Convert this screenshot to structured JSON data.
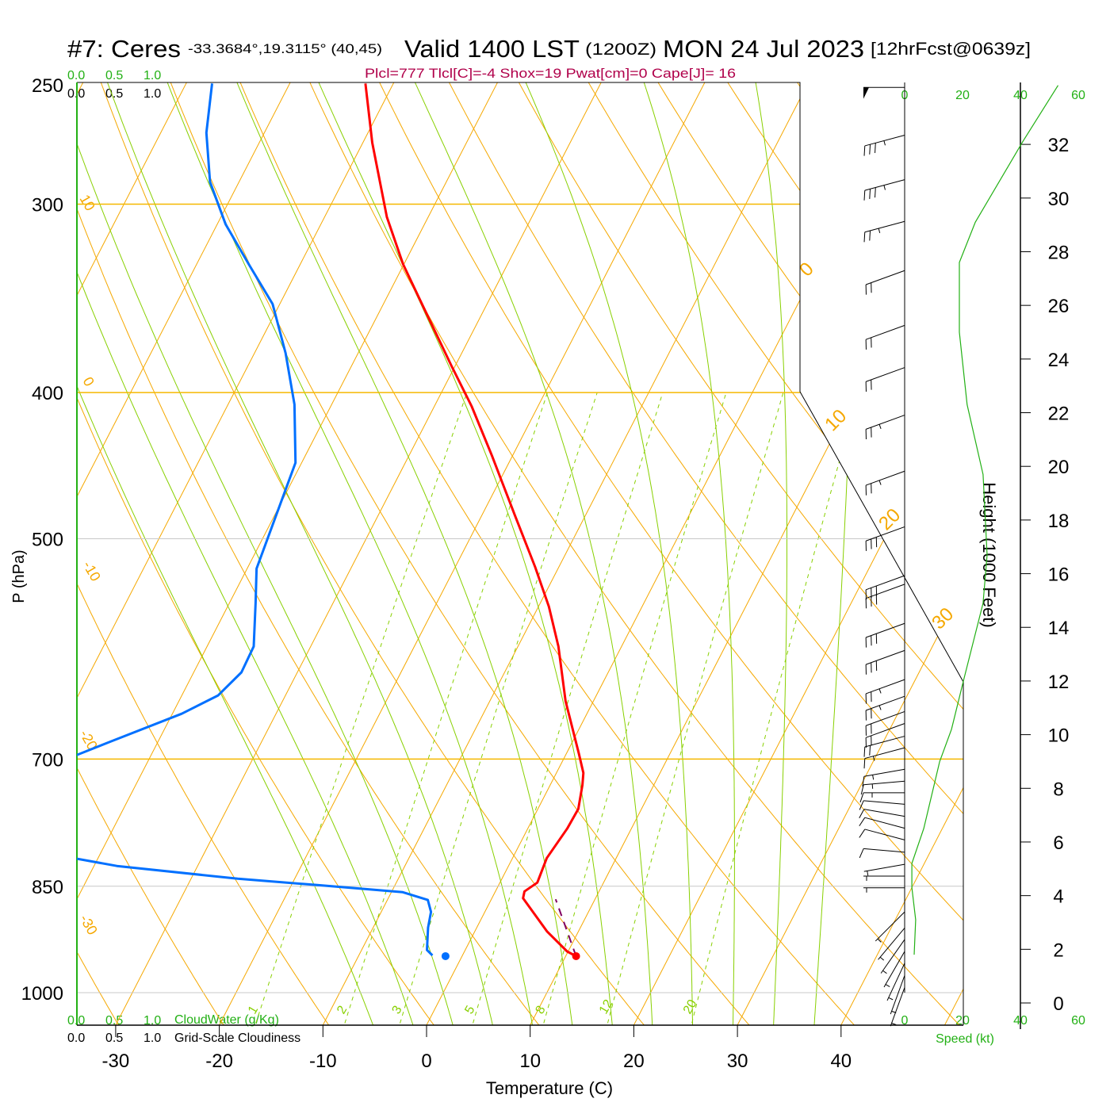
{
  "header": {
    "station": "#7: Ceres",
    "coords": "-33.3684°,19.3115° (40,45)",
    "valid": "Valid 1400 LST",
    "zulu": "(1200Z)",
    "date": "MON 24 Jul 2023",
    "forecast": "[12hrFcst@0639z]",
    "indices": "Plcl=777 Tlcl[C]=-4 Shox=19 Pwat[cm]=0 Cape[J]= 16"
  },
  "cloud_scale": {
    "green_ticks": [
      "0.0",
      "0.5",
      "1.0"
    ],
    "black_ticks": [
      "0.0",
      "0.5",
      "1.0"
    ],
    "cloudwater_label": "CloudWater (g/Kg)",
    "cloudiness_label": "Grid-Scale Cloudiness"
  },
  "speed_scale": {
    "ticks": [
      "0",
      "20",
      "40",
      "60"
    ],
    "label": "Speed (kt)"
  },
  "colors": {
    "temperature": "#ff0000",
    "dewpoint": "#0070ff",
    "parcel": "#800060",
    "isotherm": "#f5a800",
    "moist": "#88d000",
    "speed": "#22b014",
    "indices": "#b0004a"
  },
  "chart_data": {
    "type": "line",
    "subtype": "skew-T log-P",
    "xlabel": "Temperature (C)",
    "ylabel": "P (hPa)",
    "y2label": "Height (1000 Feet)",
    "x_ticks": [
      "-30",
      "-20",
      "-10",
      "0",
      "10",
      "20",
      "30",
      "40"
    ],
    "x_tick_values": [
      -30,
      -20,
      -10,
      0,
      10,
      20,
      30,
      40
    ],
    "y_ticks": [
      "250",
      "300",
      "400",
      "500",
      "700",
      "850",
      "1000"
    ],
    "y_tick_values": [
      250,
      300,
      400,
      500,
      700,
      850,
      1000
    ],
    "y2_ticks": [
      "0",
      "2",
      "4",
      "6",
      "8",
      "10",
      "12",
      "14",
      "16",
      "18",
      "20",
      "22",
      "24",
      "26",
      "28",
      "30",
      "32"
    ],
    "ylim": [
      1051,
      250
    ],
    "xlim_at_bottom": [
      -33.7,
      36.1
    ],
    "mixing_ratio_labels": [
      "1",
      "2",
      "3",
      "5",
      "8",
      "12",
      "20"
    ],
    "mixing_ratio_values": [
      1,
      2,
      3,
      5,
      8,
      12,
      20
    ],
    "adiabat_labels_left": [
      "10",
      "0",
      "-10",
      "-20",
      "-30"
    ],
    "adiabat_labels_right": [
      "0",
      "10",
      "20",
      "30"
    ],
    "series": [
      {
        "name": "Temperature",
        "points": [
          [
            945.8,
            11.0
          ],
          [
            939.0,
            9.9
          ],
          [
            911.1,
            7.0
          ],
          [
            865.7,
            3.0
          ],
          [
            856.8,
            2.8
          ],
          [
            845.3,
            3.6
          ],
          [
            814.3,
            3.3
          ],
          [
            778.5,
            3.8
          ],
          [
            755.4,
            3.9
          ],
          [
            728.2,
            3.1
          ],
          [
            715.0,
            2.6
          ],
          [
            694.2,
            1.2
          ],
          [
            640.6,
            -2.7
          ],
          [
            589.4,
            -6.1
          ],
          [
            554.6,
            -9.0
          ],
          [
            522.0,
            -12.3
          ],
          [
            482.6,
            -16.8
          ],
          [
            440.4,
            -22.0
          ],
          [
            408.5,
            -26.4
          ],
          [
            383.8,
            -30.4
          ],
          [
            351.0,
            -36.0
          ],
          [
            328.7,
            -40.1
          ],
          [
            305.9,
            -44.0
          ],
          [
            273.1,
            -49.1
          ],
          [
            249.5,
            -52.7
          ]
        ]
      },
      {
        "name": "Dewpoint",
        "points": [
          [
            944.7,
            -2.9
          ],
          [
            936.9,
            -3.7
          ],
          [
            905.5,
            -4.7
          ],
          [
            883.9,
            -5.2
          ],
          [
            868.0,
            -6.1
          ],
          [
            857.8,
            -8.9
          ],
          [
            848.5,
            -17.5
          ],
          [
            840.3,
            -25.5
          ],
          [
            824.1,
            -37.8
          ],
          [
            815.1,
            -42.0
          ],
          [
            760,
            -60
          ],
          [
            695.8,
            -47.2
          ],
          [
            681.6,
            -44.6
          ],
          [
            653.2,
            -39.1
          ],
          [
            635.2,
            -36.5
          ],
          [
            613.2,
            -35.4
          ],
          [
            589.4,
            -35.5
          ],
          [
            551.2,
            -37.5
          ],
          [
            523.3,
            -39.1
          ],
          [
            445.2,
            -40.6
          ],
          [
            407.3,
            -43.6
          ],
          [
            376.6,
            -47.0
          ],
          [
            349.4,
            -50.7
          ],
          [
            328.7,
            -55.0
          ],
          [
            309.3,
            -59.2
          ],
          [
            290.0,
            -62.8
          ],
          [
            269.0,
            -65.6
          ],
          [
            249.5,
            -67.5
          ]
        ]
      },
      {
        "name": "Parcel",
        "points": [
          [
            945.8,
            11.0
          ],
          [
            867.1,
            6.2
          ]
        ]
      }
    ],
    "surface": {
      "pressure": 945.8,
      "temperature": 11.0,
      "dewpoint": -1.6
    },
    "wind": [
      [
        251,
        270,
        50
      ],
      [
        270,
        255,
        35
      ],
      [
        289,
        255,
        35
      ],
      [
        308,
        255,
        25
      ],
      [
        332,
        250,
        20
      ],
      [
        361,
        250,
        20
      ],
      [
        385,
        250,
        20
      ],
      [
        414,
        250,
        25
      ],
      [
        451,
        250,
        25
      ],
      [
        491,
        250,
        30
      ],
      [
        529,
        250,
        30
      ],
      [
        536,
        250,
        30
      ],
      [
        569,
        250,
        30
      ],
      [
        593,
        250,
        30
      ],
      [
        620,
        250,
        25
      ],
      [
        636,
        250,
        25
      ],
      [
        651,
        250,
        20
      ],
      [
        663,
        250,
        20
      ],
      [
        676,
        255,
        20
      ],
      [
        688,
        255,
        15
      ],
      [
        711,
        260,
        15
      ],
      [
        724,
        265,
        15
      ],
      [
        737,
        270,
        15
      ],
      [
        750,
        275,
        10
      ],
      [
        764,
        280,
        10
      ],
      [
        778,
        285,
        10
      ],
      [
        792,
        285,
        10
      ],
      [
        807,
        275,
        10
      ],
      [
        822,
        260,
        5
      ],
      [
        837,
        270,
        5
      ],
      [
        852,
        270,
        5
      ],
      [
        884,
        225,
        5
      ],
      [
        906,
        220,
        5
      ],
      [
        922,
        215,
        5
      ],
      [
        939,
        210,
        5
      ],
      [
        956,
        205,
        5
      ],
      [
        974,
        200,
        5
      ],
      [
        992,
        200,
        5
      ]
    ],
    "speed_profile": {
      "x_label": "Speed (kt)",
      "y_label": "Height (1000 Feet)",
      "points": [
        [
          1.8,
          3.3
        ],
        [
          3.1,
          3.8
        ],
        [
          4.3,
          2.5
        ],
        [
          5.2,
          2.5
        ],
        [
          6.5,
          6.6
        ],
        [
          9.0,
          12.1
        ],
        [
          10.2,
          16.2
        ],
        [
          12.0,
          20.3
        ],
        [
          14.9,
          27.1
        ],
        [
          16.7,
          28.5
        ],
        [
          19.7,
          27.1
        ],
        [
          22.3,
          21.6
        ],
        [
          25.0,
          18.9
        ],
        [
          27.6,
          18.9
        ],
        [
          29.1,
          24.4
        ],
        [
          32.1,
          40.8
        ],
        [
          34.2,
          53
        ]
      ]
    }
  }
}
